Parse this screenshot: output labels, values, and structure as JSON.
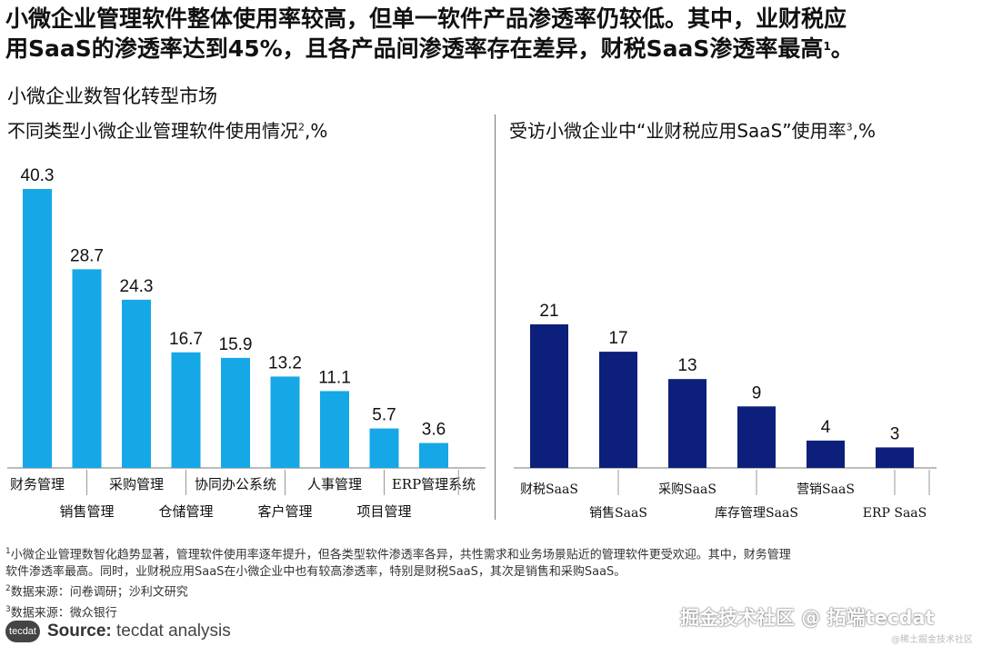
{
  "headline": {
    "line1": "小微企业管理软件整体使用率较高，但单一软件产品渗透率仍较低。其中，业财税应",
    "line2_a": "用",
    "line2_b": "SaaS",
    "line2_c": "的渗透率达到",
    "line2_d": "45%",
    "line2_e": "，且各产品间渗透率存在差异，财税",
    "line2_f": "SaaS",
    "line2_g": "渗透率最高",
    "line2_sup": "1",
    "line2_h": "。"
  },
  "section_title": "小微企业数智化转型市场",
  "left_title": {
    "text": "不同类型小微企业管理软件使用情况",
    "sup": "2",
    "suffix": ",%"
  },
  "right_title": {
    "text": "受访小微企业中“业财税应用SaaS”使用率",
    "sup": "3",
    "suffix": ",%"
  },
  "chart_data": [
    {
      "type": "bar",
      "color": "#16a7e6",
      "categories": [
        "财务管理",
        "销售管理",
        "采购管理",
        "仓储管理",
        "协同办公系统",
        "客户管理",
        "人事管理",
        "项目管理",
        "ERP管理系统"
      ],
      "values": [
        40.3,
        28.7,
        24.3,
        16.7,
        15.9,
        13.2,
        11.1,
        5.7,
        3.6
      ],
      "value_labels": [
        "40.3",
        "28.7",
        "24.3",
        "16.7",
        "15.9",
        "13.2",
        "11.1",
        "5.7",
        "3.6"
      ],
      "ylim": [
        0,
        40.3
      ]
    },
    {
      "type": "bar",
      "color": "#0c1f7a",
      "categories": [
        "财税SaaS",
        "销售SaaS",
        "采购SaaS",
        "库存管理SaaS",
        "营销SaaS",
        "ERP SaaS"
      ],
      "values": [
        21,
        17,
        13,
        9,
        4,
        3
      ],
      "value_labels": [
        "21",
        "17",
        "13",
        "9",
        "4",
        "3"
      ],
      "ylim": [
        0,
        21
      ]
    }
  ],
  "footnotes": {
    "note1": "小微企业管理数智化趋势显著，管理软件使用率逐年提升，但各类型软件渗透率各异，共性需求和业务场景贴近的管理软件更受欢迎。其中，财务管理",
    "note1b": "软件渗透率最高。同时，业财税应用SaaS在小微企业中也有较高渗透率，特别是财税SaaS，其次是销售和采购SaaS。",
    "note2": "数据来源：问卷调研；沙利文研究",
    "note3": "数据来源：微众银行"
  },
  "logo": "tecdat",
  "source": {
    "label": "Source:",
    "text": "tecdat analysis"
  },
  "watermark": "掘金技术社区 @ 拓端tecdat",
  "watermark_small": "@稀土掘金技术社区"
}
